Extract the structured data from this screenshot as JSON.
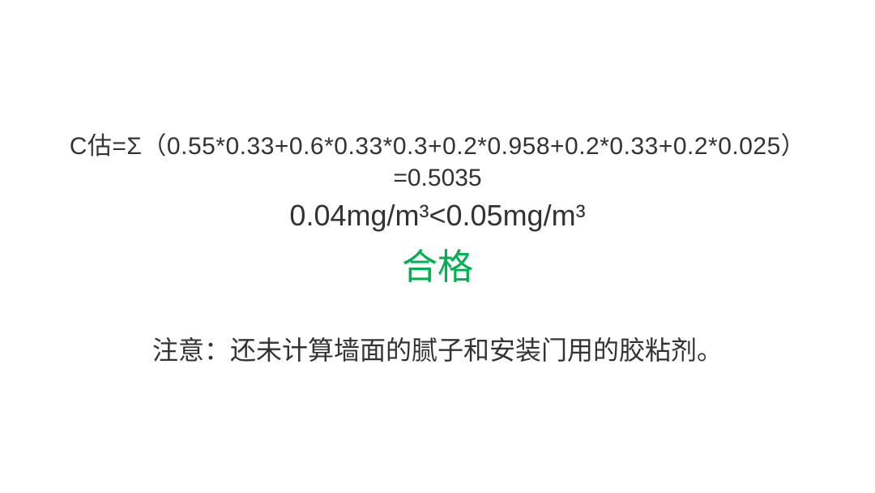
{
  "formula": {
    "line1": "C估=Σ（0.55*0.33+0.6*0.33*0.3+0.2*0.958+0.2*0.33+0.2*0.025）",
    "line2": "=0.5035",
    "comparison": "0.04mg/m³<0.05mg/m³",
    "result": "合格",
    "result_color": "#00b050"
  },
  "note": {
    "text": "注意：还未计算墙面的腻子和安装门用的胶粘剂。"
  },
  "style": {
    "background_color": "#ffffff",
    "text_color": "#333333",
    "formula_fontsize": 30,
    "comparison_fontsize": 36,
    "result_fontsize": 44,
    "note_fontsize": 32
  }
}
